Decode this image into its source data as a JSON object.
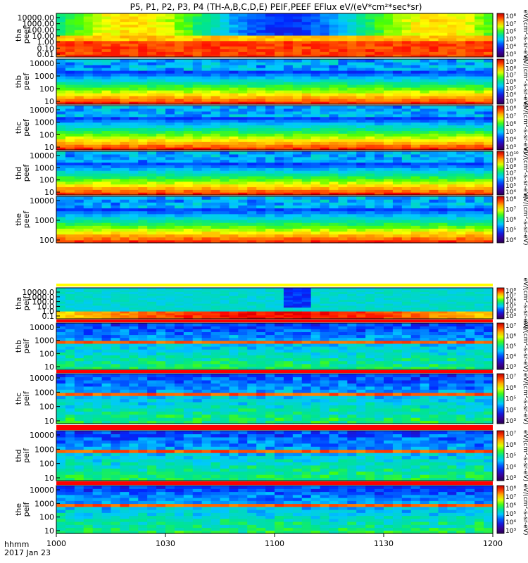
{
  "chart_data": {
    "type": "heatmap",
    "title": "P5, P1, P2, P3, P4 (TH-A,B,C,D,E) PEIF,PEEF EFlux eV/(eV*cm²*sec*sr)",
    "xlabel": "hhmm",
    "date_label": "2017 Jan 23",
    "x_ticks": [
      "1000",
      "1030",
      "1100",
      "1130",
      "1200"
    ],
    "x_range": [
      "10:00",
      "12:00"
    ],
    "colorbar_label": "[eV/(cm²-s-sr-eV)]",
    "panels": [
      {
        "id": "tha-peef",
        "ylabel": [
          "tha",
          "peef"
        ],
        "yticks": [
          "10000.00",
          "1000.00",
          "100.00",
          "10.00",
          "1.00",
          "0.10",
          "0.01"
        ],
        "cb_ticks": [
          "10⁸",
          "10⁷",
          "10⁶",
          "10⁵",
          "10⁴",
          "10³"
        ],
        "cb_label": "eV/(cm²-s-sr-eV)",
        "dataset": "peef"
      },
      {
        "id": "thb-peef",
        "ylabel": [
          "thb",
          "peef"
        ],
        "yticks": [
          "10000",
          "1000",
          "100",
          "10"
        ],
        "cb_ticks": [
          "10⁹",
          "10⁸",
          "10⁷",
          "10⁶",
          "10⁵",
          "10⁴",
          "10³"
        ],
        "cb_label": "eV/(cm²-s-sr-eV)",
        "dataset": "peef"
      },
      {
        "id": "thc-peef",
        "ylabel": [
          "thc",
          "peef"
        ],
        "yticks": [
          "10000",
          "1000",
          "100",
          "10"
        ],
        "cb_ticks": [
          "10⁸",
          "10⁷",
          "10⁶",
          "10⁵",
          "10⁴",
          "10³"
        ],
        "cb_label": "eV/(cm²-s-sr-eV)",
        "dataset": "peef"
      },
      {
        "id": "thd-peef",
        "ylabel": [
          "thd",
          "peef"
        ],
        "yticks": [
          "10000",
          "1000",
          "100",
          "10"
        ],
        "cb_ticks": [
          "10¹⁰",
          "10⁹",
          "10⁸",
          "10⁷",
          "10⁶",
          "10⁵",
          "10⁴"
        ],
        "cb_label": "eV/(cm²-s-sr-eV)",
        "dataset": "peef"
      },
      {
        "id": "the-peef",
        "ylabel": [
          "the",
          "peef"
        ],
        "yticks": [
          "10000",
          "1000",
          "100"
        ],
        "cb_ticks": [
          "10⁸",
          "10⁷",
          "10⁶",
          "10⁵",
          "10⁴"
        ],
        "cb_label": "eV/(cm²-s-sr-eV)",
        "dataset": "peef"
      },
      {
        "id": "tha-peif",
        "ylabel": [
          "tha",
          "peif"
        ],
        "yticks": [
          "10000.0",
          "1000.0",
          "100.0",
          "10.0",
          "1.0",
          "0.1"
        ],
        "cb_ticks": [
          "10⁸",
          "10⁷",
          "10⁶",
          "10⁵",
          "10⁴",
          "10³"
        ],
        "cb_label": "eV/(cm²-s-sr-eV)",
        "dataset": "peif"
      },
      {
        "id": "thb-peif",
        "ylabel": [
          "thb",
          "peif"
        ],
        "yticks": [
          "10000",
          "1000",
          "100",
          "10"
        ],
        "cb_ticks": [
          "10⁷",
          "10⁶",
          "10⁵",
          "10⁴",
          "10³"
        ],
        "cb_label": "eV/(cm²-s-sr-eV)",
        "dataset": "peif"
      },
      {
        "id": "thc-peif",
        "ylabel": [
          "thc",
          "peif"
        ],
        "yticks": [
          "10000",
          "1000",
          "100",
          "10"
        ],
        "cb_ticks": [
          "10⁷",
          "10⁶",
          "10⁵",
          "10⁴",
          "10³"
        ],
        "cb_label": "eV/(cm²-s-sr-eV)",
        "dataset": "peif"
      },
      {
        "id": "thd-peif",
        "ylabel": [
          "thd",
          "peif"
        ],
        "yticks": [
          "10000",
          "1000",
          "100",
          "10"
        ],
        "cb_ticks": [
          "10⁷",
          "10⁶",
          "10⁵",
          "10⁴",
          "10³"
        ],
        "cb_label": "eV/(cm²-s-sr-eV)",
        "dataset": "peif"
      },
      {
        "id": "the-peif",
        "ylabel": [
          "the",
          "peif"
        ],
        "yticks": [
          "10000",
          "1000",
          "100",
          "10"
        ],
        "cb_ticks": [
          "10⁸",
          "10⁷",
          "10⁶",
          "10⁵",
          "10⁴",
          "10³"
        ],
        "cb_label": "eV/(cm²-s-sr-eV)",
        "dataset": "peif"
      }
    ]
  }
}
